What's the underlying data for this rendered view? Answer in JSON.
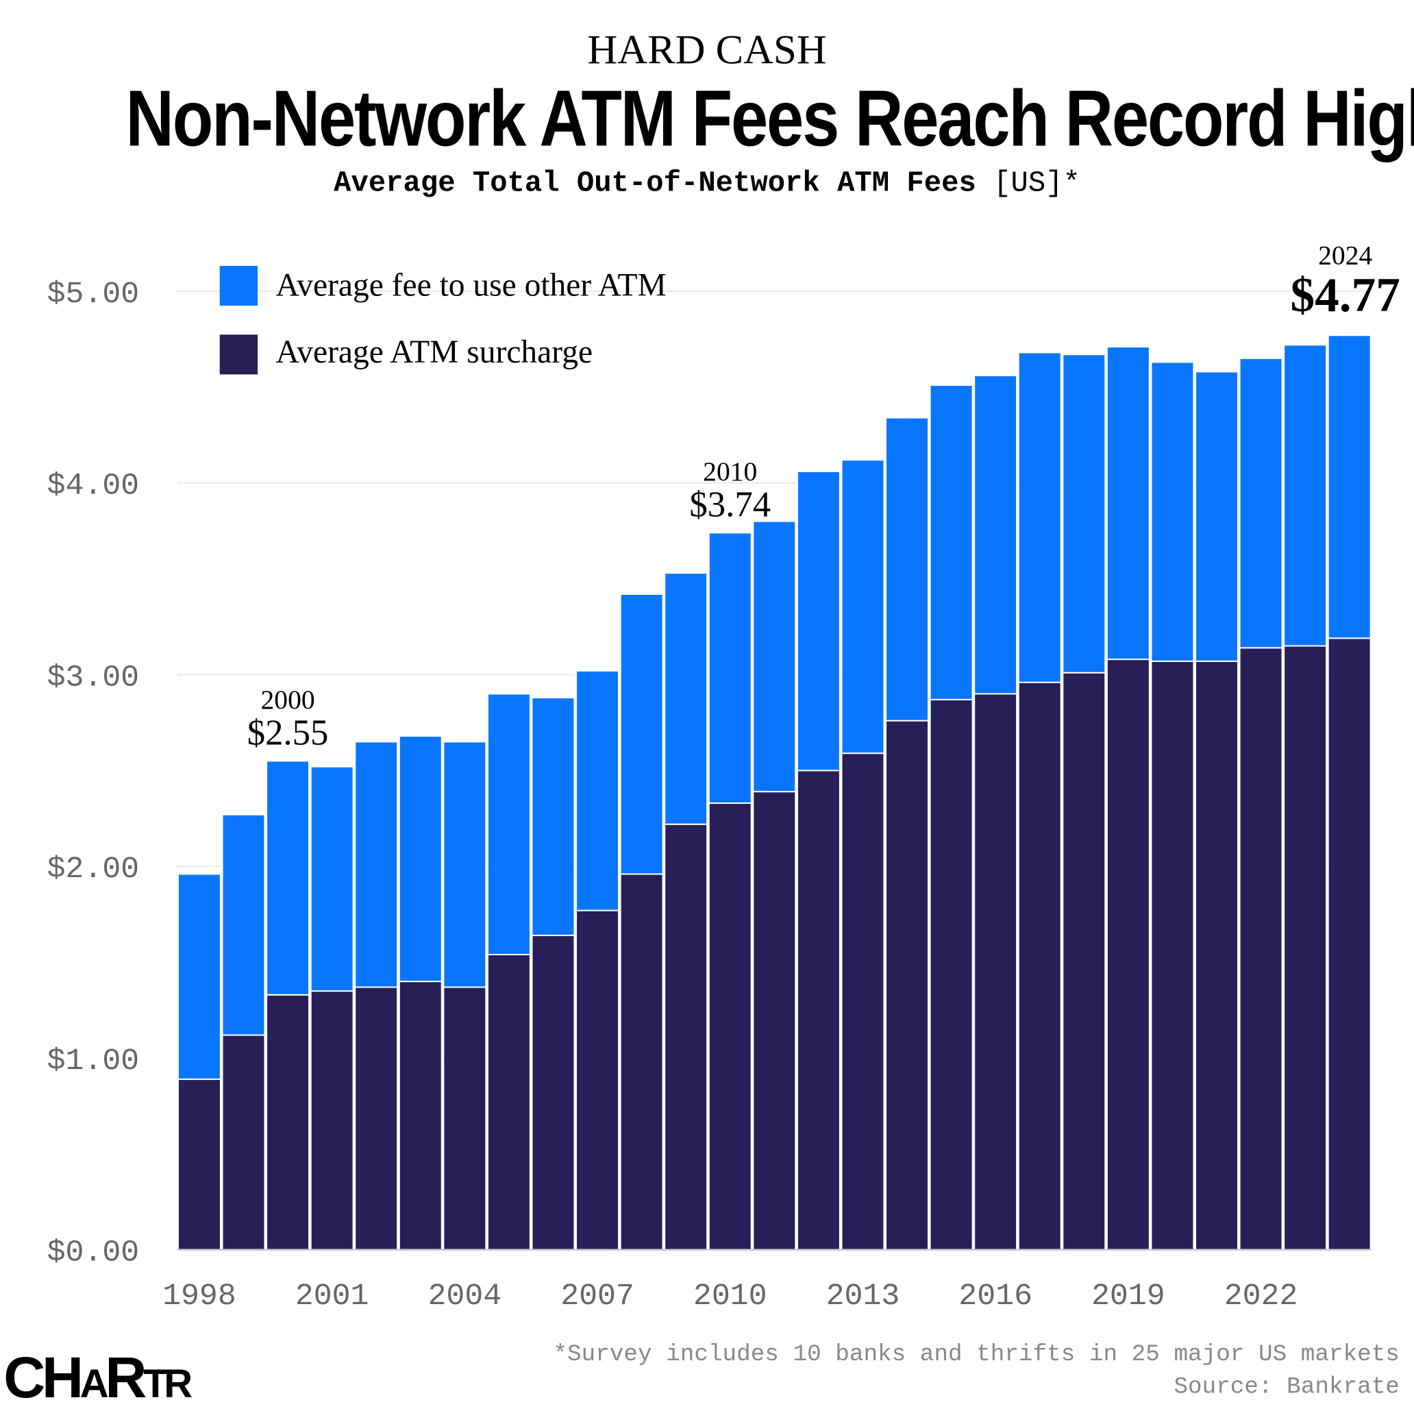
{
  "header": {
    "kicker": "HARD CASH",
    "title": "Non-Network ATM Fees Reach Record High",
    "subtitle_bold": "Average Total Out-of-Network ATM Fees",
    "subtitle_suffix": " [US]*"
  },
  "footer": {
    "note": "*Survey includes 10 banks and thrifts in 25 major US markets",
    "source": "Source: Bankrate",
    "logo": "CHARTR"
  },
  "chart_data": {
    "type": "bar",
    "stacked": true,
    "title": "Non-Network ATM Fees Reach Record High",
    "subtitle": "Average Total Out-of-Network ATM Fees [US]*",
    "xlabel": "",
    "ylabel": "",
    "ylim": [
      0,
      5
    ],
    "yticks": [
      "$0.00",
      "$1.00",
      "$2.00",
      "$3.00",
      "$4.00",
      "$5.00"
    ],
    "xticks": [
      "1998",
      "2001",
      "2004",
      "2007",
      "2010",
      "2013",
      "2016",
      "2019",
      "2022"
    ],
    "grid": true,
    "legend_position": "top-left",
    "categories": [
      "1998",
      "1999",
      "2000",
      "2001",
      "2002",
      "2003",
      "2004",
      "2005",
      "2006",
      "2007",
      "2008",
      "2009",
      "2010",
      "2011",
      "2012",
      "2013",
      "2014",
      "2015",
      "2016",
      "2017",
      "2018",
      "2019",
      "2020",
      "2021",
      "2022",
      "2023",
      "2024"
    ],
    "series": [
      {
        "name": "Average ATM surcharge",
        "color": "#281E58",
        "values": [
          0.89,
          1.12,
          1.33,
          1.35,
          1.37,
          1.4,
          1.37,
          1.54,
          1.64,
          1.77,
          1.96,
          2.22,
          2.33,
          2.39,
          2.5,
          2.59,
          2.76,
          2.87,
          2.9,
          2.96,
          3.01,
          3.08,
          3.07,
          3.07,
          3.14,
          3.15,
          3.19
        ]
      },
      {
        "name": "Average fee to use other ATM",
        "color": "#0A76FE",
        "values": [
          1.07,
          1.15,
          1.22,
          1.17,
          1.28,
          1.28,
          1.28,
          1.36,
          1.24,
          1.25,
          1.46,
          1.31,
          1.41,
          1.41,
          1.56,
          1.53,
          1.58,
          1.64,
          1.66,
          1.72,
          1.66,
          1.63,
          1.56,
          1.51,
          1.51,
          1.57,
          1.58
        ]
      }
    ],
    "annotations": [
      {
        "year": "2000",
        "label": "$2.55"
      },
      {
        "year": "2010",
        "label": "$3.74"
      },
      {
        "year": "2024",
        "label": "$4.77"
      }
    ]
  }
}
